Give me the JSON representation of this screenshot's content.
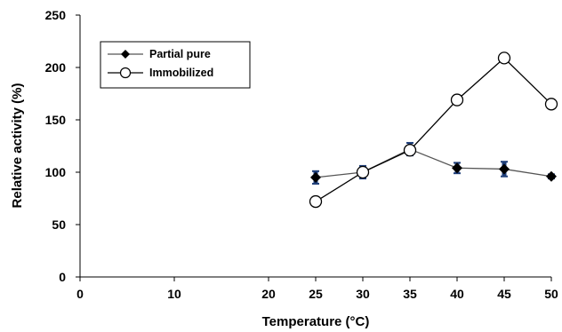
{
  "chart_data": {
    "type": "line",
    "title": "",
    "xlabel": "Temperature (°C)",
    "ylabel": "Relative activity (%)",
    "xlim": [
      0,
      50
    ],
    "ylim": [
      0,
      250
    ],
    "x_ticks": [
      "0",
      "10",
      "20",
      "25",
      "30",
      "35",
      "40",
      "45",
      "50"
    ],
    "x_tick_values": [
      0,
      10,
      20,
      25,
      30,
      35,
      40,
      45,
      50
    ],
    "y_ticks": [
      "0",
      "50",
      "100",
      "150",
      "200",
      "250"
    ],
    "y_tick_values": [
      0,
      50,
      100,
      150,
      200,
      250
    ],
    "grid": false,
    "legend_position": "top-left",
    "series": [
      {
        "name": "Partial pure",
        "marker": "diamond-filled",
        "color": "#000000",
        "line_color": "#555555",
        "error_color": "#1f3f7a",
        "x": [
          25,
          30,
          35,
          40,
          45,
          50
        ],
        "y": [
          95,
          100,
          122,
          104,
          103,
          96
        ],
        "error": [
          6,
          6,
          6,
          5,
          7,
          2
        ]
      },
      {
        "name": "Immobilized",
        "marker": "circle-open",
        "color": "#000000",
        "line_color": "#000000",
        "x": [
          25,
          30,
          35,
          40,
          45,
          50
        ],
        "y": [
          72,
          100,
          121,
          169,
          209,
          165
        ]
      }
    ]
  }
}
